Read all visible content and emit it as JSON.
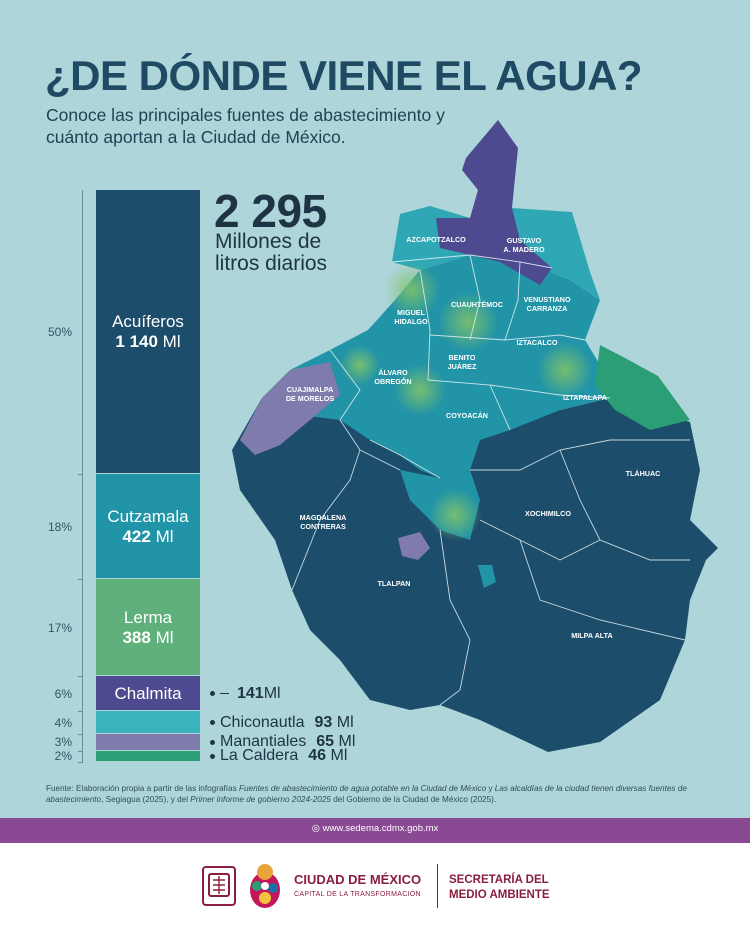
{
  "header": {
    "title": "¿DE DÓNDE VIENE EL AGUA?",
    "subtitle": "Conoce las principales fuentes de abastecimiento y cuánto aportan a la Ciudad de México."
  },
  "total": {
    "value": "2 295",
    "unit": "Millones de litros diarios"
  },
  "colors": {
    "background": "#aed5d9",
    "acuiferos": "#1c4d6b",
    "cutzamala": "#2294a7",
    "lerma": "#5fb07a",
    "chalmita": "#4d4a8f",
    "chiconautla": "#3ab3bc",
    "manantiales": "#7f7bad",
    "la_caldera": "#2b9e75",
    "brand": "#8a1f3d",
    "band": "#8a4a93"
  },
  "chart_data": {
    "type": "bar",
    "stacked": true,
    "unit": "Ml",
    "total": 2295,
    "categories": [
      "Acuíferos",
      "Cutzamala",
      "Lerma",
      "Chalmita",
      "Chiconautla",
      "Manantiales",
      "La Caldera"
    ],
    "values": [
      1140,
      422,
      388,
      141,
      93,
      65,
      46
    ],
    "value_labels": [
      "1 140",
      "422",
      "388",
      "141",
      "93",
      "65",
      "46"
    ],
    "percent_labels": [
      "50%",
      "18%",
      "17%",
      "6%",
      "4%",
      "3%",
      "2%"
    ],
    "colors": [
      "#1c4d6b",
      "#2294a7",
      "#5fb07a",
      "#4d4a8f",
      "#3ab3bc",
      "#7f7bad",
      "#2b9e75"
    ]
  },
  "map": {
    "labels": [
      "AZCAPOTZALCO",
      "GUSTAVO A. MADERO",
      "MIGUEL HIDALGO",
      "CUAUHTÉMOC",
      "VENUSTIANO CARRANZA",
      "IZTACALCO",
      "BENITO JUÁREZ",
      "ÁLVARO OBREGÓN",
      "CUAJIMALPA DE MORELOS",
      "IZTAPALAPA",
      "COYOACÁN",
      "TLÁHUAC",
      "XOCHIMILCO",
      "MAGDALENA CONTRERAS",
      "TLALPAN",
      "MILPA ALTA"
    ]
  },
  "footer": {
    "source_prefix": "Fuente: Elaboración propia a partir de las infografías ",
    "source_italic_1": "Fuentes de abastecimiento de agua potable en la Ciudad de México",
    "source_mid_1": " y ",
    "source_italic_2": "Las alcaldías de la ciudad tienen diversas fuentes de abastecimiento",
    "source_mid_2": ", Segiagua (2025), y del ",
    "source_italic_3": "Primer informe de gobierno 2024-2025",
    "source_suffix": " del Gobierno de la Ciudad de México (2025).",
    "url": "www.sedema.cdmx.gob.mx",
    "city_name": "CIUDAD DE MÉXICO",
    "city_tagline": "CAPITAL DE LA TRANSFORMACIÓN",
    "secretaria": "SECRETARÍA DEL MEDIO AMBIENTE"
  }
}
